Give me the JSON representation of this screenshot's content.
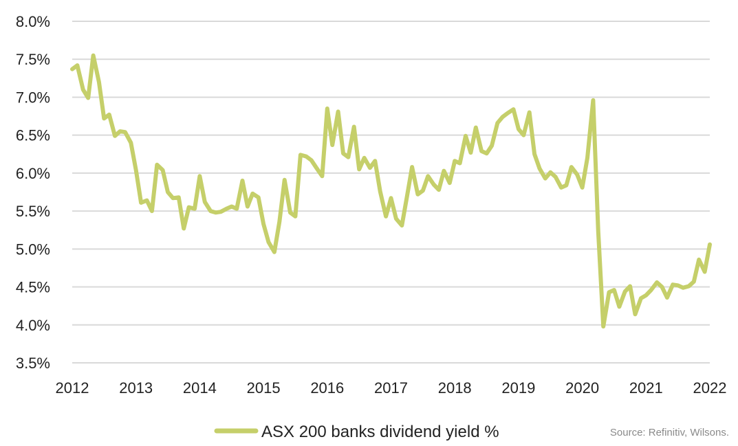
{
  "chart_data": {
    "type": "line",
    "title": "",
    "xlabel": "",
    "ylabel": "",
    "xlim": [
      2012,
      2022
    ],
    "ylim": [
      3.5,
      8.0
    ],
    "y_ticks": [
      3.5,
      4.0,
      4.5,
      5.0,
      5.5,
      6.0,
      6.5,
      7.0,
      7.5,
      8.0
    ],
    "y_tick_labels": [
      "3.5%",
      "4.0%",
      "4.5%",
      "5.0%",
      "5.5%",
      "6.0%",
      "6.5%",
      "7.0%",
      "7.5%",
      "8.0%"
    ],
    "x_ticks": [
      2012,
      2013,
      2014,
      2015,
      2016,
      2017,
      2018,
      2019,
      2020,
      2021,
      2022
    ],
    "x_tick_labels": [
      "2012",
      "2013",
      "2014",
      "2015",
      "2016",
      "2017",
      "2018",
      "2019",
      "2020",
      "2021",
      "2022"
    ],
    "grid": "horizontal",
    "legend_position": "bottom",
    "series": [
      {
        "name": "ASX 200 banks dividend yield %",
        "color": "#c5cf6a",
        "x": [
          2012.0,
          2012.08,
          2012.17,
          2012.25,
          2012.33,
          2012.42,
          2012.5,
          2012.58,
          2012.67,
          2012.75,
          2012.83,
          2012.92,
          2013.0,
          2013.08,
          2013.17,
          2013.25,
          2013.33,
          2013.42,
          2013.5,
          2013.58,
          2013.67,
          2013.75,
          2013.83,
          2013.92,
          2014.0,
          2014.08,
          2014.17,
          2014.25,
          2014.33,
          2014.42,
          2014.5,
          2014.58,
          2014.67,
          2014.75,
          2014.83,
          2014.92,
          2015.0,
          2015.08,
          2015.17,
          2015.25,
          2015.33,
          2015.42,
          2015.5,
          2015.58,
          2015.67,
          2015.75,
          2015.83,
          2015.92,
          2016.0,
          2016.08,
          2016.17,
          2016.25,
          2016.33,
          2016.42,
          2016.5,
          2016.58,
          2016.67,
          2016.75,
          2016.83,
          2016.92,
          2017.0,
          2017.08,
          2017.17,
          2017.25,
          2017.33,
          2017.42,
          2017.5,
          2017.58,
          2017.67,
          2017.75,
          2017.83,
          2017.92,
          2018.0,
          2018.08,
          2018.17,
          2018.25,
          2018.33,
          2018.42,
          2018.5,
          2018.58,
          2018.67,
          2018.75,
          2018.83,
          2018.92,
          2019.0,
          2019.08,
          2019.17,
          2019.25,
          2019.33,
          2019.42,
          2019.5,
          2019.58,
          2019.67,
          2019.75,
          2019.83,
          2019.92,
          2020.0,
          2020.08,
          2020.17,
          2020.25,
          2020.33,
          2020.42,
          2020.5,
          2020.58,
          2020.67,
          2020.75,
          2020.83,
          2020.92,
          2021.0,
          2021.08,
          2021.17,
          2021.25,
          2021.33,
          2021.42,
          2021.5,
          2021.58,
          2021.67,
          2021.75,
          2021.83,
          2021.92,
          2022.0
        ],
        "values": [
          7.37,
          7.42,
          7.1,
          6.99,
          7.55,
          7.2,
          6.72,
          6.77,
          6.49,
          6.55,
          6.54,
          6.4,
          6.04,
          5.61,
          5.64,
          5.5,
          6.11,
          6.04,
          5.75,
          5.67,
          5.68,
          5.27,
          5.55,
          5.53,
          5.96,
          5.62,
          5.5,
          5.48,
          5.49,
          5.53,
          5.56,
          5.53,
          5.9,
          5.56,
          5.73,
          5.68,
          5.33,
          5.09,
          4.96,
          5.36,
          5.91,
          5.48,
          5.43,
          6.24,
          6.22,
          6.17,
          6.07,
          5.96,
          6.85,
          6.37,
          6.81,
          6.26,
          6.21,
          6.61,
          6.05,
          6.2,
          6.07,
          6.16,
          5.76,
          5.43,
          5.67,
          5.4,
          5.31,
          5.69,
          6.08,
          5.72,
          5.77,
          5.96,
          5.85,
          5.78,
          6.03,
          5.87,
          6.16,
          6.13,
          6.49,
          6.27,
          6.6,
          6.29,
          6.26,
          6.36,
          6.66,
          6.74,
          6.79,
          6.84,
          6.58,
          6.5,
          6.8,
          6.25,
          6.06,
          5.93,
          6.01,
          5.95,
          5.81,
          5.84,
          6.08,
          5.98,
          5.81,
          6.2,
          6.96,
          5.23,
          3.98,
          4.43,
          4.46,
          4.24,
          4.44,
          4.51,
          4.14,
          4.35,
          4.39,
          4.46,
          4.56,
          4.5,
          4.36,
          4.53,
          4.52,
          4.49,
          4.51,
          4.57,
          4.86,
          4.7,
          5.06
        ]
      }
    ],
    "legend": [
      "ASX 200 banks dividend yield %"
    ]
  },
  "source_note": "Source: Refinitiv, Wilsons."
}
